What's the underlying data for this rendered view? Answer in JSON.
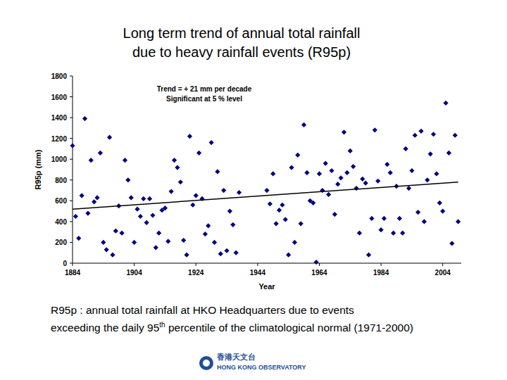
{
  "chart_data": {
    "type": "scatter",
    "title": [
      "Long term trend of annual total rainfall",
      "due to heavy rainfall events (R95p)"
    ],
    "x_label": "Year",
    "y_label": "R95p (mm)",
    "annotations": [
      "Trend = + 21 mm per decade",
      "Significant at 5 % level"
    ],
    "xlim": [
      1884,
      2010
    ],
    "xticks": [
      1884,
      1904,
      1924,
      1944,
      1964,
      1984,
      2004
    ],
    "ylim": [
      0,
      1800
    ],
    "yticks": [
      0,
      200,
      400,
      600,
      800,
      1000,
      1200,
      1400,
      1600,
      1800
    ],
    "grid": false,
    "series": [
      {
        "type": "scatter",
        "color": "#000080",
        "marker": "diamond",
        "x": [
          1884,
          1885,
          1886,
          1887,
          1888,
          1889,
          1890,
          1891,
          1892,
          1893,
          1894,
          1895,
          1896,
          1897,
          1898,
          1899,
          1900,
          1901,
          1902,
          1903,
          1904,
          1905,
          1906,
          1907,
          1908,
          1909,
          1910,
          1911,
          1912,
          1913,
          1914,
          1915,
          1916,
          1917,
          1918,
          1919,
          1920,
          1921,
          1922,
          1923,
          1924,
          1925,
          1926,
          1927,
          1928,
          1929,
          1930,
          1931,
          1932,
          1933,
          1934,
          1935,
          1936,
          1937,
          1938,
          1947,
          1948,
          1949,
          1950,
          1951,
          1952,
          1953,
          1954,
          1955,
          1956,
          1957,
          1958,
          1959,
          1960,
          1961,
          1962,
          1963,
          1964,
          1965,
          1966,
          1967,
          1968,
          1969,
          1970,
          1971,
          1972,
          1973,
          1974,
          1975,
          1976,
          1977,
          1978,
          1979,
          1980,
          1981,
          1982,
          1983,
          1984,
          1985,
          1986,
          1987,
          1988,
          1989,
          1990,
          1991,
          1992,
          1993,
          1994,
          1995,
          1996,
          1997,
          1998,
          1999,
          2000,
          2001,
          2002,
          2003,
          2004,
          2005,
          2006,
          2007,
          2008,
          2009
        ],
        "values": [
          1130,
          450,
          240,
          650,
          1390,
          480,
          990,
          590,
          630,
          1060,
          200,
          130,
          1210,
          80,
          310,
          550,
          290,
          990,
          800,
          630,
          200,
          520,
          450,
          620,
          390,
          620,
          460,
          150,
          290,
          510,
          530,
          210,
          690,
          990,
          920,
          780,
          220,
          80,
          1220,
          560,
          650,
          1060,
          620,
          280,
          360,
          1160,
          200,
          880,
          90,
          700,
          120,
          500,
          370,
          100,
          680,
          700,
          570,
          860,
          380,
          510,
          560,
          420,
          80,
          920,
          200,
          1040,
          380,
          1330,
          870,
          600,
          580,
          10,
          860,
          700,
          960,
          660,
          890,
          470,
          760,
          820,
          1260,
          870,
          1080,
          930,
          720,
          290,
          810,
          770,
          80,
          430,
          1280,
          790,
          320,
          430,
          950,
          870,
          290,
          740,
          430,
          290,
          1100,
          720,
          890,
          1230,
          490,
          1270,
          400,
          800,
          1050,
          1240,
          860,
          580,
          500,
          1540,
          1060,
          190,
          1230,
          400
        ]
      },
      {
        "type": "line",
        "color": "#000000",
        "line_style": "solid",
        "x": [
          1884,
          2009
        ],
        "values": [
          520,
          780
        ]
      }
    ],
    "footnote": {
      "line1": "R95p : annual total rainfall at HKO Headquarters due to events",
      "line2_start": "exceeding the daily 95",
      "line2_sup": "th",
      "line2_end": " percentile of the climatological normal (1971-2000)"
    }
  },
  "logo": {
    "chinese": "香港天文台",
    "english": "HONG KONG OBSERVATORY"
  }
}
